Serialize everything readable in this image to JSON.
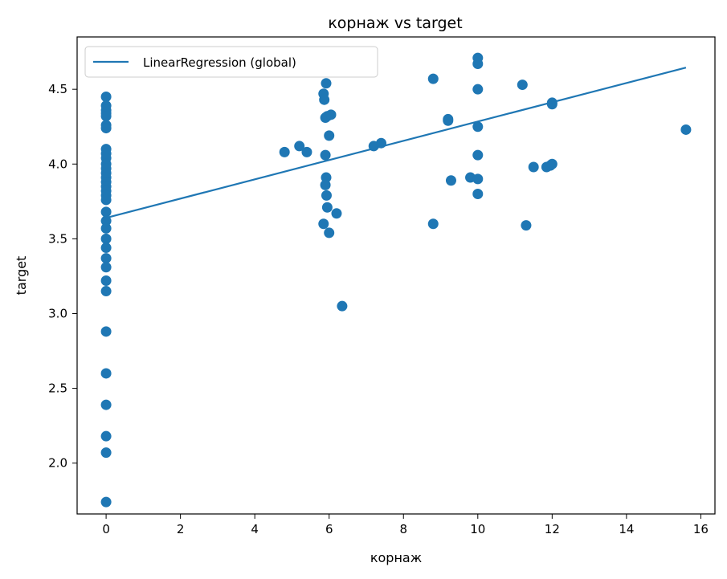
{
  "chart_data": {
    "type": "scatter",
    "title": "корнаж vs target",
    "xlabel": "корнаж",
    "ylabel": "target",
    "xlim": [
      -0.78,
      16.38
    ],
    "ylim": [
      1.66,
      4.85
    ],
    "xticks": [
      0,
      2,
      4,
      6,
      8,
      10,
      12,
      14,
      16
    ],
    "yticks": [
      2.0,
      2.5,
      3.0,
      3.5,
      4.0,
      4.5
    ],
    "grid": false,
    "legend_position": "top-left",
    "colors": {
      "series": "#1f77b4"
    },
    "series": [
      {
        "kind": "scatter",
        "points": [
          [
            0,
            4.45
          ],
          [
            0,
            4.39
          ],
          [
            0,
            4.36
          ],
          [
            0,
            4.34
          ],
          [
            0,
            4.32
          ],
          [
            0,
            4.26
          ],
          [
            0,
            4.24
          ],
          [
            0,
            4.1
          ],
          [
            0,
            4.07
          ],
          [
            0,
            4.04
          ],
          [
            0,
            4.0
          ],
          [
            0,
            3.97
          ],
          [
            0,
            3.94
          ],
          [
            0,
            3.91
          ],
          [
            0,
            3.88
          ],
          [
            0,
            3.85
          ],
          [
            0,
            3.82
          ],
          [
            0,
            3.79
          ],
          [
            0,
            3.76
          ],
          [
            0,
            3.68
          ],
          [
            0,
            3.62
          ],
          [
            0,
            3.57
          ],
          [
            0,
            3.5
          ],
          [
            0,
            3.44
          ],
          [
            0,
            3.37
          ],
          [
            0,
            3.31
          ],
          [
            0,
            3.22
          ],
          [
            0,
            3.15
          ],
          [
            0,
            2.88
          ],
          [
            0,
            2.6
          ],
          [
            0,
            2.39
          ],
          [
            0,
            2.18
          ],
          [
            0,
            2.07
          ],
          [
            0,
            1.74
          ],
          [
            4.8,
            4.08
          ],
          [
            5.2,
            4.12
          ],
          [
            5.4,
            4.08
          ],
          [
            5.85,
            4.47
          ],
          [
            5.87,
            4.43
          ],
          [
            5.9,
            4.31
          ],
          [
            5.92,
            4.54
          ],
          [
            5.95,
            4.32
          ],
          [
            6.05,
            4.33
          ],
          [
            5.9,
            4.06
          ],
          [
            6.0,
            4.19
          ],
          [
            5.92,
            3.91
          ],
          [
            5.9,
            3.86
          ],
          [
            5.93,
            3.79
          ],
          [
            5.95,
            3.71
          ],
          [
            5.85,
            3.6
          ],
          [
            6.0,
            3.54
          ],
          [
            6.2,
            3.67
          ],
          [
            6.35,
            3.05
          ],
          [
            7.2,
            4.12
          ],
          [
            7.4,
            4.14
          ],
          [
            8.8,
            4.57
          ],
          [
            8.8,
            3.6
          ],
          [
            9.2,
            4.3
          ],
          [
            9.2,
            4.29
          ],
          [
            9.28,
            3.89
          ],
          [
            9.8,
            3.91
          ],
          [
            10.0,
            4.71
          ],
          [
            10.0,
            4.67
          ],
          [
            10.0,
            4.5
          ],
          [
            10.0,
            4.25
          ],
          [
            10.0,
            4.06
          ],
          [
            10.0,
            3.9
          ],
          [
            10.0,
            3.8
          ],
          [
            11.2,
            4.53
          ],
          [
            11.3,
            3.59
          ],
          [
            11.5,
            3.98
          ],
          [
            11.85,
            3.98
          ],
          [
            11.95,
            3.99
          ],
          [
            12.0,
            4.0
          ],
          [
            12.0,
            4.41
          ],
          [
            12.0,
            4.4
          ],
          [
            15.6,
            4.23
          ]
        ]
      },
      {
        "kind": "line",
        "name": "LinearRegression (global)",
        "points": [
          [
            0,
            3.64
          ],
          [
            15.6,
            4.645
          ]
        ]
      }
    ]
  }
}
